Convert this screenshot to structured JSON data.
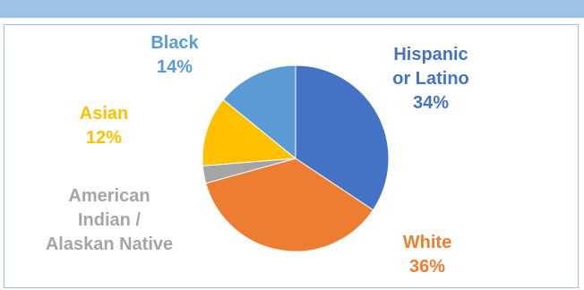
{
  "header": {
    "title": ""
  },
  "chart_data": {
    "type": "pie",
    "title": "",
    "slices": [
      {
        "label_lines": [
          "Hispanic",
          "or Latino"
        ],
        "value": 34,
        "value_label": "34%",
        "color": "#4472c4"
      },
      {
        "label_lines": [
          "White"
        ],
        "value": 36,
        "value_label": "36%",
        "color": "#ed7d31"
      },
      {
        "label_lines": [
          "American",
          "Indian /",
          "Alaskan Native"
        ],
        "value": 3,
        "value_label": "",
        "color": "#a5a5a5"
      },
      {
        "label_lines": [
          "Asian"
        ],
        "value": 12,
        "value_label": "12%",
        "color": "#ffc000"
      },
      {
        "label_lines": [
          "Black"
        ],
        "value": 14,
        "value_label": "14%",
        "color": "#5b9bd5"
      }
    ],
    "legend": "none"
  }
}
